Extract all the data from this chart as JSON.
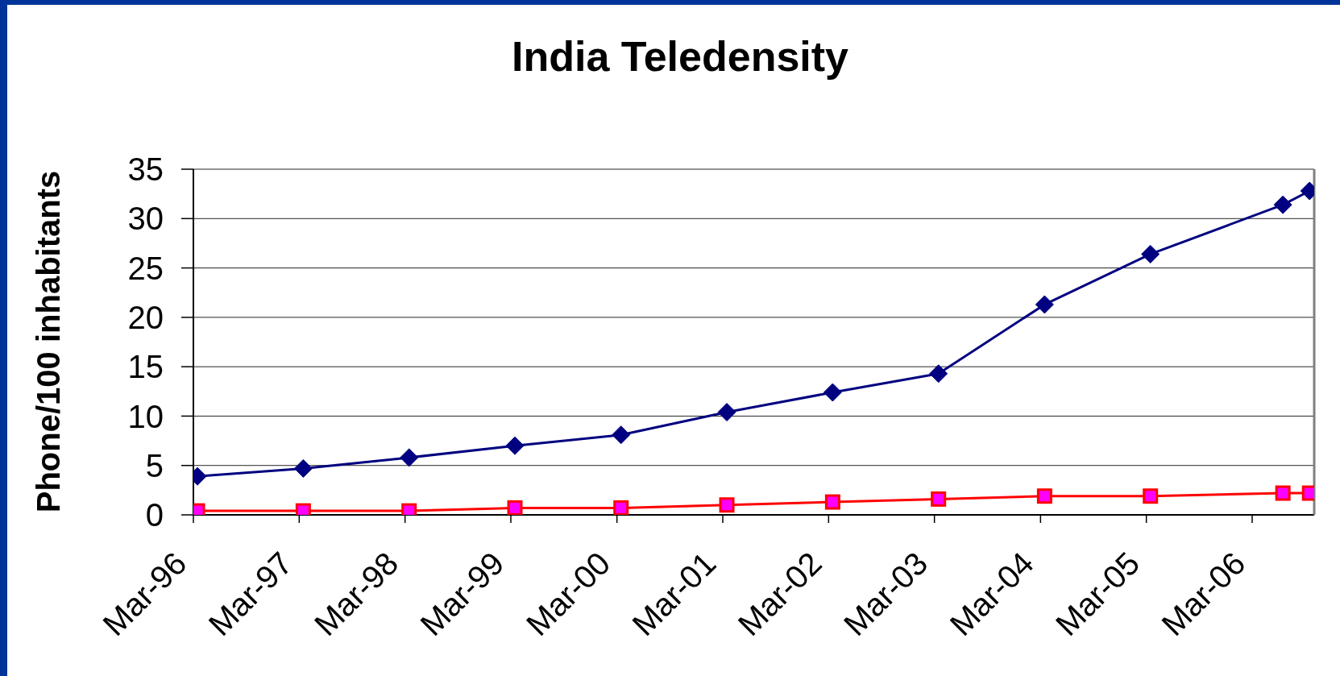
{
  "chart_data": {
    "type": "line",
    "title": "India Teledensity",
    "ylabel": "Phone/100 inhabitants",
    "x": [
      "1996-03-15",
      "1997-03-15",
      "1998-03-15",
      "1999-03-15",
      "2000-03-15",
      "2001-03-15",
      "2002-03-15",
      "2003-03-15",
      "2004-03-15",
      "2005-03-15",
      "2006-06-15",
      "2006-09-15"
    ],
    "series": [
      {
        "color": "#000080",
        "marker": "diamond",
        "values": [
          3.9,
          4.7,
          5.8,
          7.0,
          8.1,
          10.4,
          12.4,
          14.3,
          21.3,
          26.4,
          31.4,
          32.8
        ]
      },
      {
        "color": "#ff0000",
        "marker": "square",
        "colors": [
          "#ff00ff",
          "#ff00ff",
          "#ff00ff",
          "#ff00ff",
          "#ff00ff",
          "#ff00ff",
          "#ff00ff",
          "#ff00ff",
          "#ff00ff",
          "#ff00ff",
          "#ff00ff",
          "#ff00ff"
        ],
        "values": [
          0.4,
          0.4,
          0.4,
          0.7,
          0.7,
          1.0,
          1.3,
          1.6,
          1.9,
          1.9,
          2.2,
          2.2
        ]
      }
    ],
    "xlim": [
      "1996-03",
      "2006-10"
    ],
    "xticks": [
      {
        "value": "1996-03",
        "label": "Mar-96"
      },
      {
        "value": "1997-03",
        "label": "Mar-97"
      },
      {
        "value": "1998-03",
        "label": "Mar-98"
      },
      {
        "value": "1999-03",
        "label": "Mar-99"
      },
      {
        "value": "2000-03",
        "label": "Mar-00"
      },
      {
        "value": "2001-03",
        "label": "Mar-01"
      },
      {
        "value": "2002-03",
        "label": "Mar-02"
      },
      {
        "value": "2003-03",
        "label": "Mar-03"
      },
      {
        "value": "2004-03",
        "label": "Mar-04"
      },
      {
        "value": "2005-03",
        "label": "Mar-05"
      },
      {
        "value": "2006-03",
        "label": "Mar-06"
      }
    ],
    "ylim": [
      0,
      35
    ],
    "yticks": [
      0,
      5,
      10,
      15,
      20,
      25,
      30,
      35
    ],
    "grid": "y",
    "line_style": "solid"
  }
}
